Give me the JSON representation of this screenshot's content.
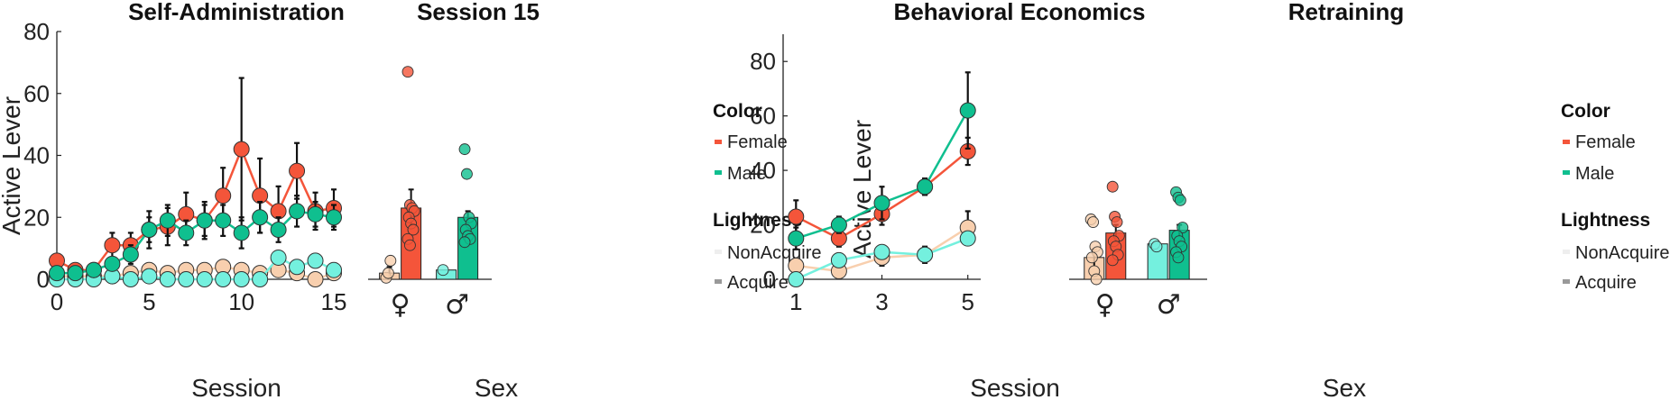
{
  "colors": {
    "female_acq": "#f4553a",
    "male_acq": "#0fbf8f",
    "female_non": "#f8cfae",
    "male_non": "#74f0de",
    "axis": "#222222",
    "err": "#111111"
  },
  "legend": {
    "color_header": "Color",
    "female": "Female",
    "male": "Male",
    "lightness_header": "Lightness",
    "nonacquire": "NonAcquire",
    "acquire": "Acquire",
    "swatch_non": "#eeeeee",
    "swatch_acq": "#999999"
  },
  "chart_data": [
    {
      "type": "line",
      "title": "Self-Administration",
      "xlabel": "Session",
      "ylabel": "Active Lever",
      "xlim": [
        0,
        15
      ],
      "ylim": [
        0,
        80
      ],
      "xticks": [
        "0",
        "5",
        "10",
        "15"
      ],
      "yticks": [
        "0",
        "20",
        "40",
        "60",
        "80"
      ],
      "x": [
        0,
        1,
        2,
        3,
        4,
        5,
        6,
        7,
        8,
        9,
        10,
        11,
        12,
        13,
        14,
        15
      ],
      "series": [
        {
          "name": "Female Acquire",
          "color": "female_acq",
          "err_bars": true,
          "values": [
            6,
            3,
            3,
            11,
            11,
            16,
            17,
            21,
            19,
            27,
            42,
            27,
            22,
            35,
            22,
            23
          ],
          "err": [
            2,
            1,
            1,
            4,
            4,
            6,
            6,
            7,
            6,
            9,
            23,
            12,
            8,
            9,
            6,
            6
          ]
        },
        {
          "name": "Male Acquire",
          "color": "male_acq",
          "err_bars": true,
          "values": [
            2,
            2,
            3,
            5,
            8,
            16,
            19,
            15,
            19,
            19,
            15,
            20,
            16,
            22,
            21,
            20
          ],
          "err": [
            1,
            1,
            1,
            2,
            3,
            4,
            5,
            4,
            5,
            5,
            5,
            5,
            4,
            5,
            4,
            4
          ]
        },
        {
          "name": "Female NonAcquire",
          "color": "female_non",
          "values": [
            1,
            1,
            1,
            1,
            2,
            3,
            2,
            3,
            3,
            4,
            3,
            2,
            3,
            2,
            0,
            2
          ]
        },
        {
          "name": "Male NonAcquire",
          "color": "male_non",
          "values": [
            0,
            0,
            0,
            1,
            0,
            1,
            0,
            0,
            0,
            0,
            0,
            0,
            7,
            4,
            6,
            3
          ]
        }
      ]
    },
    {
      "type": "bar",
      "title": "Session 15",
      "xlabel": "Sex",
      "ylim": [
        0,
        80
      ],
      "categories": [
        "♀",
        "♂"
      ],
      "bars": [
        {
          "group": 0,
          "color": "female_non",
          "value": 2,
          "err": 2,
          "points": [
            0.5,
            2,
            6
          ]
        },
        {
          "group": 0,
          "color": "female_acq",
          "value": 23,
          "err": 6,
          "points": [
            67,
            24,
            23,
            22,
            20,
            18,
            16,
            13,
            11
          ]
        },
        {
          "group": 1,
          "color": "male_non",
          "value": 3,
          "err": 0,
          "points": [
            3
          ]
        },
        {
          "group": 1,
          "color": "male_acq",
          "value": 20,
          "err": 2,
          "points": [
            42,
            34,
            20,
            18,
            16,
            14,
            13,
            12
          ]
        }
      ]
    },
    {
      "type": "line",
      "title": "Behavioral Economics",
      "xlabel": "Session",
      "ylabel": "Active Lever",
      "xlim": [
        0.7,
        5.3
      ],
      "ylim": [
        0,
        90
      ],
      "xticks": [
        "1",
        "3",
        "5"
      ],
      "yticks": [
        "0",
        "20",
        "40",
        "60",
        "80"
      ],
      "x": [
        1,
        2,
        3,
        4,
        5
      ],
      "series": [
        {
          "name": "Female Acquire",
          "color": "female_acq",
          "err_bars": true,
          "values": [
            23,
            15,
            24,
            34,
            47
          ],
          "err": [
            6,
            3,
            4,
            3,
            5
          ]
        },
        {
          "name": "Male Acquire",
          "color": "male_acq",
          "err_bars": true,
          "values": [
            15,
            20,
            28,
            34,
            62
          ],
          "err": [
            4,
            3,
            6,
            3,
            14
          ]
        },
        {
          "name": "Female NonAcquire",
          "color": "female_non",
          "err_bars": true,
          "values": [
            5,
            3,
            8,
            9,
            19
          ],
          "err": [
            0,
            0,
            3,
            3,
            6
          ]
        },
        {
          "name": "Male NonAcquire",
          "color": "male_non",
          "err_bars": true,
          "values": [
            0,
            7,
            10,
            9,
            15
          ],
          "err": [
            0,
            0,
            2,
            1,
            1
          ]
        }
      ]
    },
    {
      "type": "bar",
      "title": "Retraining",
      "xlabel": "Sex",
      "ylim": [
        0,
        90
      ],
      "categories": [
        "♀",
        "♂"
      ],
      "bars": [
        {
          "group": 0,
          "color": "female_non",
          "value": 8,
          "err": 3,
          "points": [
            22,
            21,
            12,
            10,
            8,
            3,
            0
          ]
        },
        {
          "group": 0,
          "color": "female_acq",
          "value": 17,
          "err": 3,
          "points": [
            34,
            23,
            21,
            16,
            14,
            12,
            9,
            7
          ]
        },
        {
          "group": 1,
          "color": "male_non",
          "value": 13,
          "err": 0,
          "points": [
            13,
            12
          ]
        },
        {
          "group": 1,
          "color": "male_acq",
          "value": 18,
          "err": 2,
          "points": [
            32,
            30,
            29,
            19,
            16,
            14,
            12,
            10,
            8
          ]
        }
      ]
    }
  ]
}
